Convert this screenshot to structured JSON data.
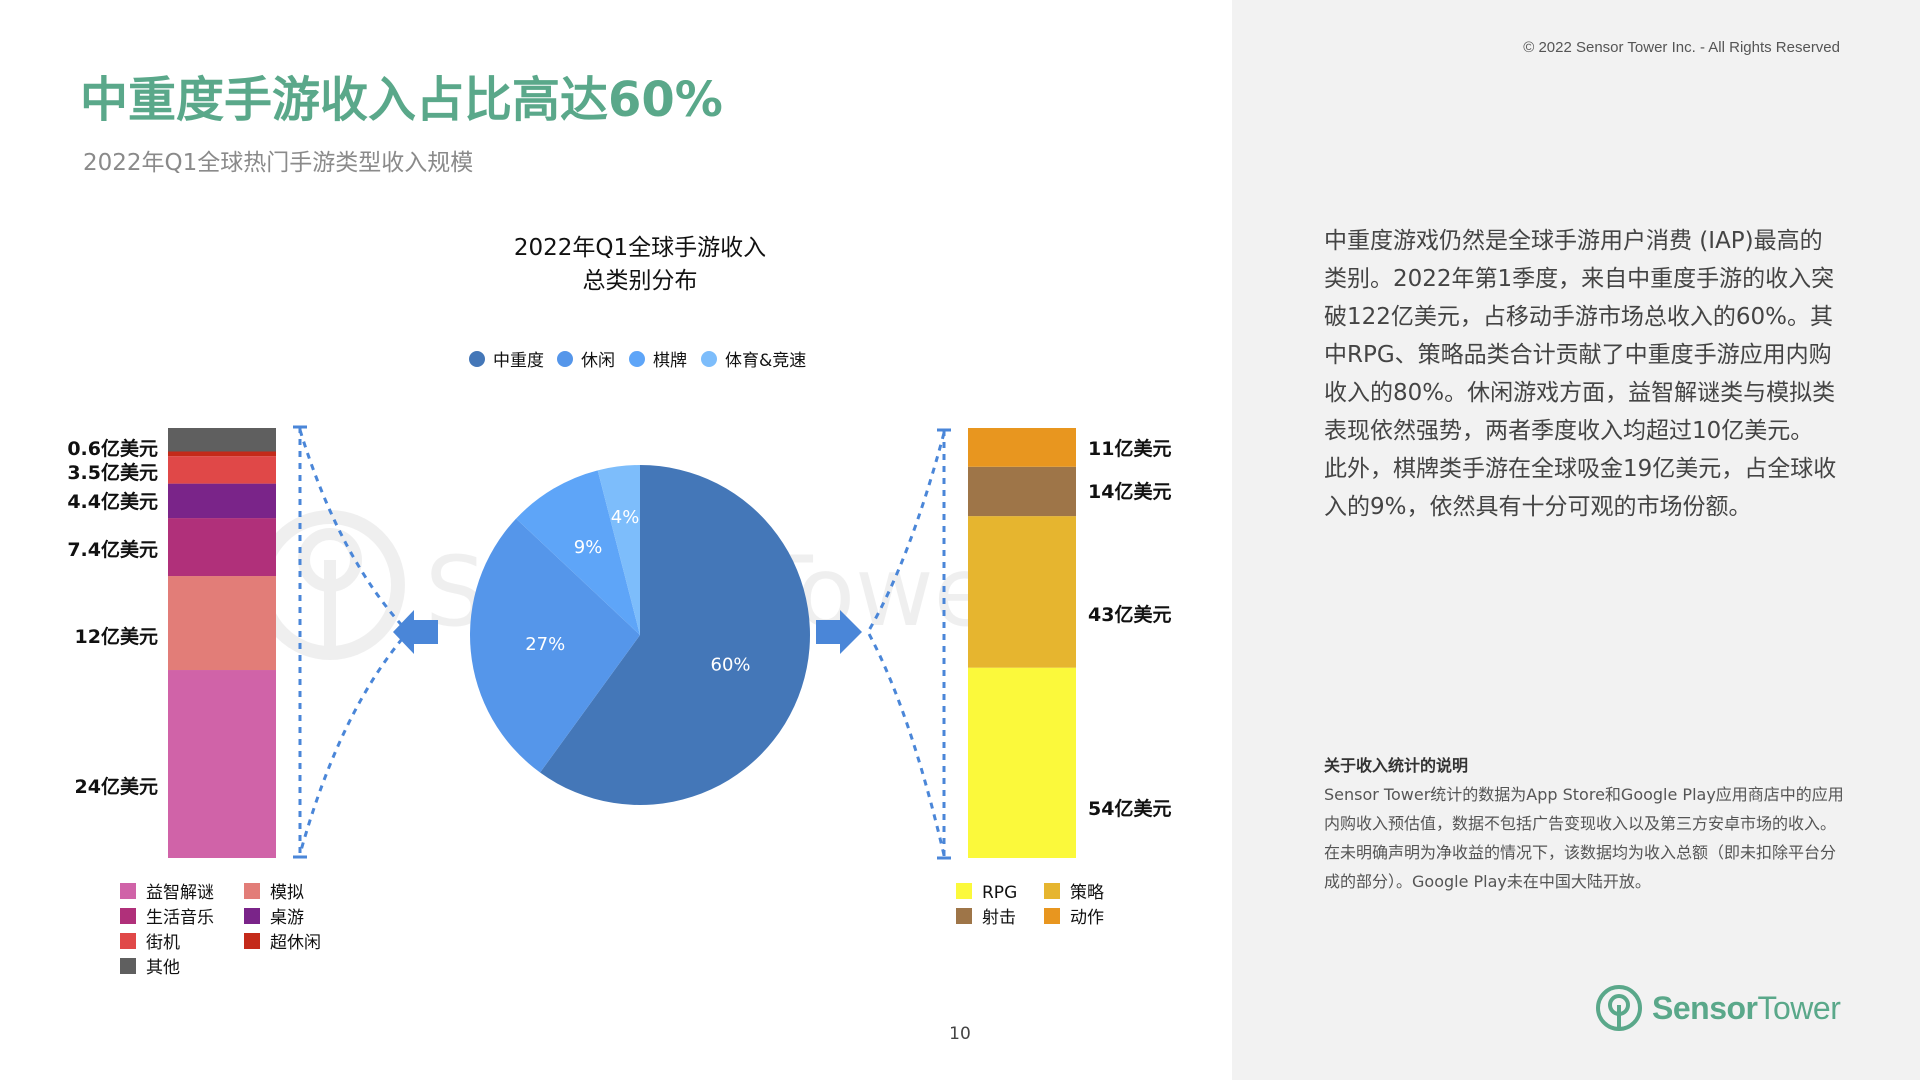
{
  "header": {
    "title": "中重度手游收入占比高达60%",
    "subtitle": "2022年Q1全球热门手游类型收入规模",
    "copyright": "© 2022 Sensor Tower Inc. - All Rights Reserved"
  },
  "watermark": "SensorTower",
  "chart_data": [
    {
      "type": "pie",
      "title_lines": [
        "2022年Q1全球手游收入",
        "总类别分布"
      ],
      "categories": [
        "中重度",
        "休闲",
        "棋牌",
        "体育&竞速"
      ],
      "values": [
        60,
        27,
        9,
        4
      ],
      "labels": [
        "60%",
        "27%",
        "9%",
        "4%"
      ],
      "colors": [
        "#4477b8",
        "#5596ea",
        "#5ea5f8",
        "#7dbdfb"
      ],
      "legend_position": "top"
    },
    {
      "type": "bar",
      "stacked": true,
      "note": "Breakdown of 休闲",
      "unit": "亿美元",
      "series": [
        {
          "name": "益智解谜",
          "value": 24,
          "label": "24亿美元",
          "color": "#d063a8"
        },
        {
          "name": "模拟",
          "value": 12,
          "label": "12亿美元",
          "color": "#e27d78"
        },
        {
          "name": "生活音乐",
          "value": 7.4,
          "label": "7.4亿美元",
          "color": "#b0307a"
        },
        {
          "name": "桌游",
          "value": 4.4,
          "label": "4.4亿美元",
          "color": "#7a2489"
        },
        {
          "name": "街机",
          "value": 3.5,
          "label": "3.5亿美元",
          "color": "#e04848"
        },
        {
          "name": "超休闲",
          "value": 0.6,
          "label": "0.6亿美元",
          "color": "#c42a1a"
        },
        {
          "name": "其他",
          "value": 3,
          "label": "",
          "color": "#5f5f5f"
        }
      ],
      "legend_position": "bottom"
    },
    {
      "type": "bar",
      "stacked": true,
      "note": "Breakdown of 中重度",
      "unit": "亿美元",
      "series": [
        {
          "name": "RPG",
          "value": 54,
          "label": "54亿美元",
          "color": "#fbf93b"
        },
        {
          "name": "策略",
          "value": 43,
          "label": "43亿美元",
          "color": "#e6b52f"
        },
        {
          "name": "射击",
          "value": 14,
          "label": "14亿美元",
          "color": "#9e7548"
        },
        {
          "name": "动作",
          "value": 11,
          "label": "11亿美元",
          "color": "#e8961f"
        }
      ],
      "legend_position": "bottom"
    }
  ],
  "commentary": {
    "paragraphs": [
      "中重度游戏仍然是全球手游用户消费 (IAP)最高的类别。2022年第1季度，来自中重度手游的收入突破122亿美元，占移动手游市场总收入的60%。其中RPG、策略品类合计贡献了中重度手游应用内购收入的80%。休闲游戏方面，益智解谜类与模拟类表现依然强势，两者季度收入均超过10亿美元。",
      "此外，棋牌类手游在全球吸金19亿美元，占全球收入的9%，依然具有十分可观的市场份额。"
    ]
  },
  "note": {
    "title": "关于收入统计的说明",
    "body": "Sensor Tower统计的数据为App Store和Google Play应用商店中的应用内购收入预估值，数据不包括广告变现收入以及第三方安卓市场的收入。在未明确声明为净收益的情况下，该数据均为收入总额（即未扣除平台分成的部分）。Google Play未在中国大陆开放。"
  },
  "footer": {
    "page_number": "10",
    "logo_text_bold": "Sensor",
    "logo_text_light": "Tower",
    "brand_color": "#5aa88a"
  }
}
